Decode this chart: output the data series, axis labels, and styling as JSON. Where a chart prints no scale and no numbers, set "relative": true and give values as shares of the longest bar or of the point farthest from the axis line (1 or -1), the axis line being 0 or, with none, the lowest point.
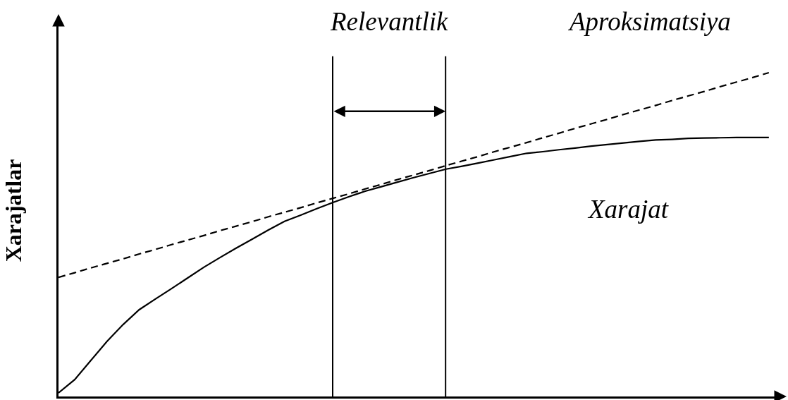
{
  "chart_data": {
    "type": "line",
    "relative": true,
    "ylabel": "Xarajatlar",
    "categories": [
      null,
      null,
      null,
      null,
      null,
      null,
      null,
      null,
      null,
      null,
      null,
      null,
      null,
      null,
      null,
      null,
      null,
      null,
      null,
      null,
      null,
      null,
      null,
      null,
      null,
      null,
      null,
      null,
      null,
      null,
      null,
      null,
      null,
      null,
      null,
      null,
      null,
      null,
      null,
      null,
      null,
      null,
      null,
      null,
      null
    ],
    "series": [
      {
        "name": "Aproksimatsiya",
        "color": "#000000",
        "line_style": "dashed",
        "values": [
          0.368,
          0.382,
          0.397,
          0.411,
          0.425,
          0.44,
          0.454,
          0.469,
          0.483,
          0.497,
          0.512,
          0.526,
          0.54,
          0.555,
          0.569,
          0.583,
          0.598,
          0.612,
          0.626,
          0.641,
          0.655,
          0.67,
          0.684,
          0.698,
          0.713,
          0.727,
          0.741,
          0.756,
          0.77,
          0.784,
          0.799,
          0.813,
          0.828,
          0.842,
          0.856,
          0.871,
          0.885,
          0.899,
          0.914,
          0.928,
          0.942,
          0.957,
          0.971,
          0.985,
          1.0
        ]
      },
      {
        "name": "Xarajat",
        "color": "#000000",
        "line_style": "solid",
        "values": [
          0.011,
          0.052,
          0.111,
          0.17,
          0.222,
          0.268,
          0.301,
          0.333,
          0.366,
          0.399,
          0.429,
          0.458,
          0.486,
          0.514,
          0.541,
          0.56,
          0.58,
          0.599,
          0.617,
          0.634,
          0.648,
          0.662,
          0.676,
          0.689,
          0.702,
          0.711,
          0.721,
          0.731,
          0.741,
          0.751,
          0.756,
          0.762,
          0.767,
          0.773,
          0.778,
          0.783,
          0.788,
          0.792,
          0.794,
          0.797,
          0.798,
          0.799,
          0.8,
          0.8,
          0.8
        ]
      }
    ],
    "annotations": [
      "Relevantlik"
    ]
  }
}
